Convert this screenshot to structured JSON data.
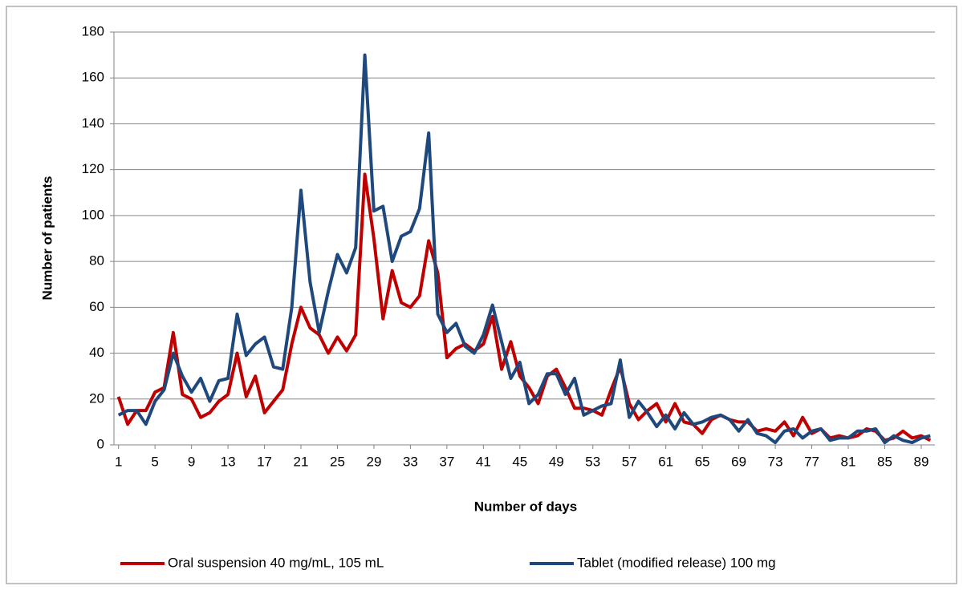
{
  "chart_data": {
    "type": "line",
    "x_label": "Number of days",
    "y_label": "Number of patients",
    "categories": [
      1,
      null,
      null,
      null,
      5,
      null,
      null,
      null,
      9,
      null,
      null,
      null,
      13,
      null,
      null,
      null,
      17,
      null,
      null,
      null,
      21,
      null,
      null,
      null,
      25,
      null,
      null,
      null,
      29,
      null,
      null,
      null,
      33,
      null,
      null,
      null,
      37,
      null,
      null,
      null,
      41,
      null,
      null,
      null,
      45,
      null,
      null,
      null,
      49,
      null,
      null,
      null,
      53,
      null,
      null,
      null,
      57,
      null,
      null,
      null,
      61,
      null,
      null,
      null,
      65,
      null,
      null,
      null,
      69,
      null,
      null,
      null,
      73,
      null,
      null,
      null,
      77,
      null,
      null,
      null,
      81,
      null,
      null,
      null,
      85,
      null,
      null,
      null,
      89,
      null
    ],
    "series": [
      {
        "name": "Oral suspension 40 mg/mL, 105 mL",
        "color": "#c00000",
        "values": [
          21,
          9,
          15,
          15,
          23,
          25,
          49,
          22,
          20,
          12,
          14,
          19,
          22,
          40,
          21,
          30,
          14,
          19,
          24,
          44,
          60,
          51,
          48,
          40,
          47,
          41,
          48,
          118,
          90,
          55,
          76,
          62,
          60,
          65,
          89,
          75,
          38,
          42,
          44,
          41,
          44,
          56,
          33,
          45,
          30,
          25,
          18,
          30,
          33,
          25,
          16,
          16,
          15,
          13,
          24,
          34,
          18,
          11,
          15,
          18,
          10,
          18,
          10,
          9,
          5,
          11,
          13,
          11,
          10,
          10,
          6,
          7,
          6,
          10,
          4,
          12,
          5,
          7,
          3,
          4,
          3,
          4,
          7,
          6,
          2,
          3,
          6,
          3,
          4,
          2
        ]
      },
      {
        "name": "Tablet (modified release) 100 mg",
        "color": "#1f497d",
        "values": [
          13,
          15,
          15,
          9,
          19,
          24,
          40,
          30,
          23,
          29,
          19,
          28,
          29,
          57,
          39,
          44,
          47,
          34,
          33,
          60,
          111,
          71,
          49,
          67,
          83,
          75,
          86,
          170,
          102,
          104,
          80,
          91,
          93,
          103,
          136,
          57,
          49,
          53,
          43,
          40,
          48,
          61,
          45,
          29,
          36,
          18,
          22,
          31,
          31,
          22,
          29,
          13,
          15,
          17,
          18,
          37,
          12,
          19,
          14,
          8,
          13,
          7,
          14,
          9,
          10,
          12,
          13,
          11,
          6,
          11,
          5,
          4,
          1,
          6,
          7,
          3,
          6,
          7,
          2,
          3,
          3,
          6,
          6,
          7,
          1,
          4,
          2,
          1,
          3,
          4
        ]
      }
    ],
    "ylim": [
      0,
      180
    ],
    "yticks": [
      0,
      20,
      40,
      60,
      80,
      100,
      120,
      140,
      160,
      180
    ],
    "grid": true,
    "legend": "bottom"
  }
}
